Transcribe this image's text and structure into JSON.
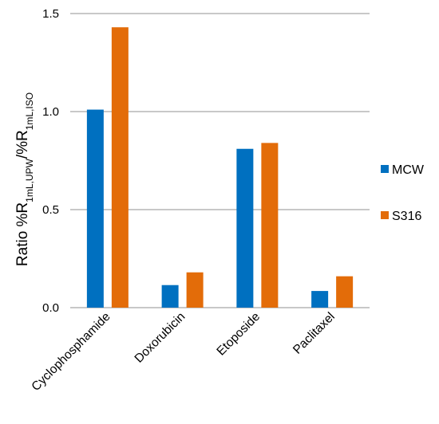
{
  "chart_data": {
    "type": "bar",
    "categories": [
      "Cyclophosphamide",
      "Doxorubicin",
      "Etoposide",
      "Paclitaxel"
    ],
    "series": [
      {
        "name": "MCW",
        "color": "#0070C0",
        "values": [
          1.01,
          0.115,
          0.81,
          0.085
        ]
      },
      {
        "name": "S316",
        "color": "#E36C09",
        "values": [
          1.43,
          0.18,
          0.84,
          0.16
        ]
      }
    ],
    "ylim": [
      0,
      1.5
    ],
    "yticks": [
      "0.0",
      "0.5",
      "1.0",
      "1.5"
    ],
    "ytick_values": [
      0,
      0.5,
      1.0,
      1.5
    ],
    "ylabel": {
      "prefix": "Ratio %R",
      "sub1": "1mL,UPW",
      "middle": "/%R",
      "sub2": "1mL,ISO"
    },
    "grid": true,
    "legend_position": "right",
    "gridline_color": "#A6A6A6"
  }
}
